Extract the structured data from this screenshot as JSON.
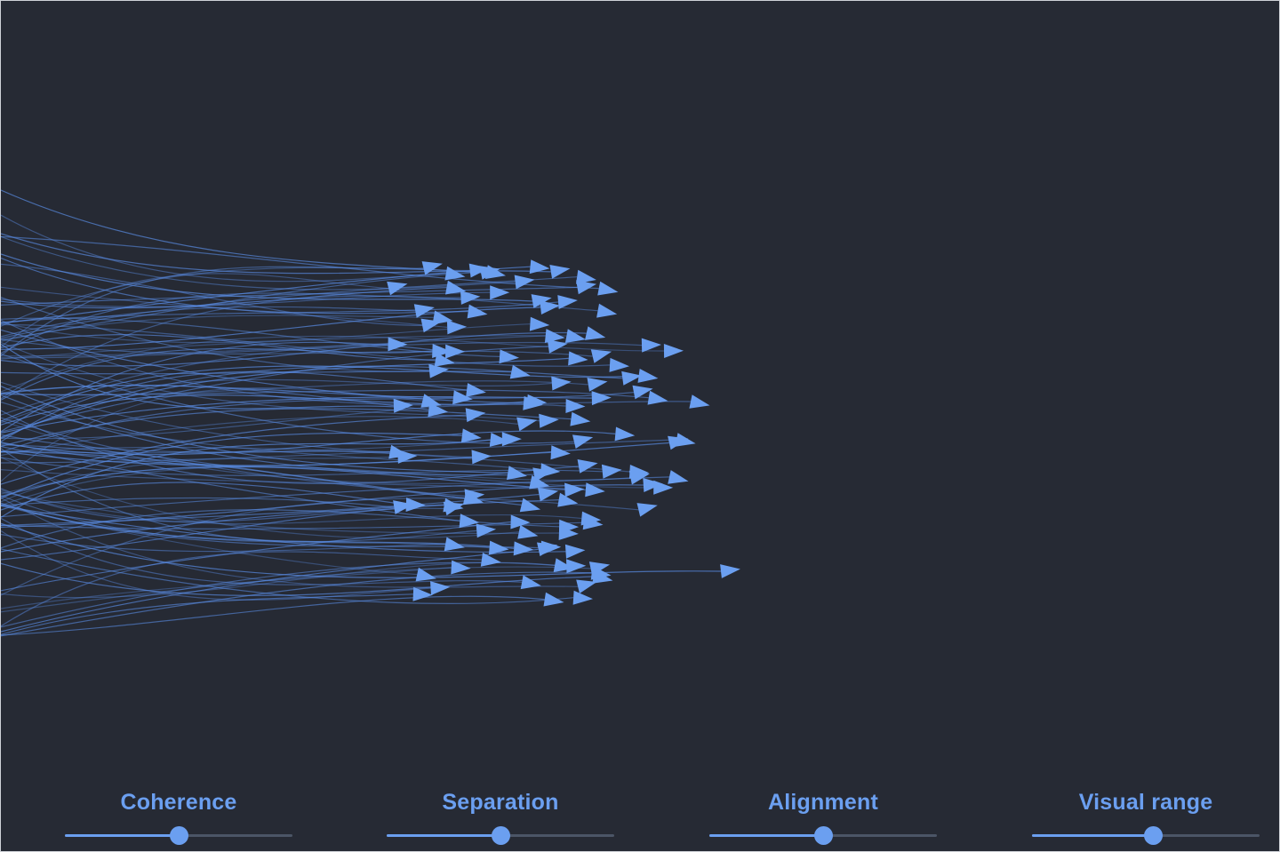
{
  "colors": {
    "background": "#262a34",
    "accent": "#6b9ff0",
    "trail": "#5a8de6",
    "track": "#4b5566"
  },
  "controls": [
    {
      "id": "coherence",
      "label": "Coherence",
      "value": 0.5
    },
    {
      "id": "separation",
      "label": "Separation",
      "value": 0.5
    },
    {
      "id": "alignment",
      "label": "Alignment",
      "value": 0.5
    },
    {
      "id": "visual-range",
      "label": "Visual range",
      "value": 0.53
    }
  ]
}
